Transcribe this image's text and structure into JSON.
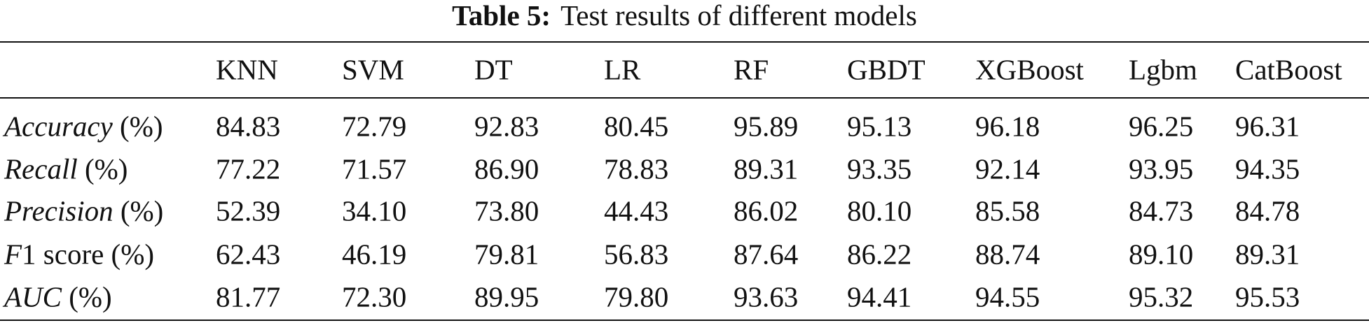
{
  "header": {
    "label": "Table 5:",
    "title": "Test results of different models"
  },
  "table": {
    "columns": [
      "KNN",
      "SVM",
      "DT",
      "LR",
      "RF",
      "GBDT",
      "XGBoost",
      "Lgbm",
      "CatBoost"
    ],
    "rows": [
      {
        "label_italic": "Accuracy",
        "label_rest": " (%)",
        "values": [
          "84.83",
          "72.79",
          "92.83",
          "80.45",
          "95.89",
          "95.13",
          "96.18",
          "96.25",
          "96.31"
        ]
      },
      {
        "label_italic": "Recall",
        "label_rest": " (%)",
        "values": [
          "77.22",
          "71.57",
          "86.90",
          "78.83",
          "89.31",
          "93.35",
          "92.14",
          "93.95",
          "94.35"
        ]
      },
      {
        "label_italic": "Precision",
        "label_rest": " (%)",
        "values": [
          "52.39",
          "34.10",
          "73.80",
          "44.43",
          "86.02",
          "80.10",
          "85.58",
          "84.73",
          "84.78"
        ]
      },
      {
        "label_italic": "F",
        "label_rest": "1 score (%)",
        "values": [
          "62.43",
          "46.19",
          "79.81",
          "56.83",
          "87.64",
          "86.22",
          "88.74",
          "89.10",
          "89.31"
        ]
      },
      {
        "label_italic": "AUC",
        "label_rest": " (%)",
        "values": [
          "81.77",
          "72.30",
          "89.95",
          "79.80",
          "93.63",
          "94.41",
          "94.55",
          "95.32",
          "95.53"
        ]
      }
    ]
  }
}
